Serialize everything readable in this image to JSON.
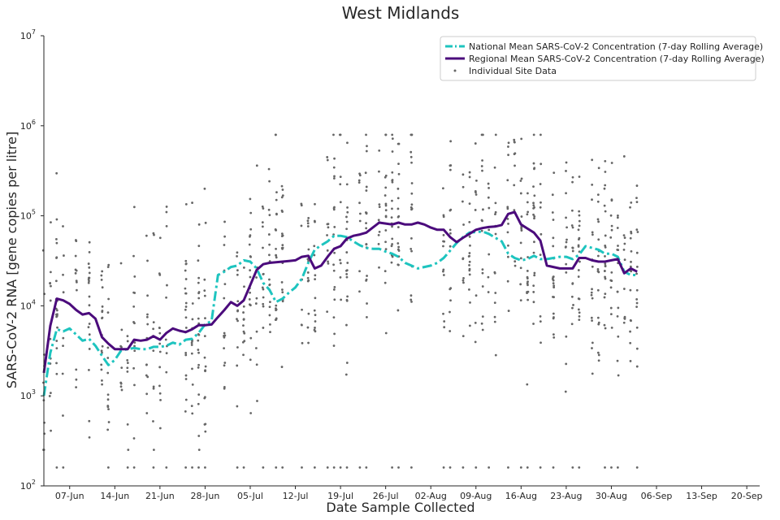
{
  "chart_data": {
    "type": "line",
    "title": "West Midlands",
    "xlabel": "Date Sample Collected",
    "ylabel": "SARS-CoV-2 RNA [gene copies per litre]",
    "yscale": "log",
    "ylim_exp": [
      2,
      7
    ],
    "y_ticks": [
      {
        "base": "10",
        "exp": "2"
      },
      {
        "base": "10",
        "exp": "3"
      },
      {
        "base": "10",
        "exp": "4"
      },
      {
        "base": "10",
        "exp": "5"
      },
      {
        "base": "10",
        "exp": "6"
      },
      {
        "base": "10",
        "exp": "7"
      }
    ],
    "xlim_days": [
      0,
      111
    ],
    "x_ticks": [
      {
        "label": "07-Jun",
        "day": 4
      },
      {
        "label": "14-Jun",
        "day": 11
      },
      {
        "label": "21-Jun",
        "day": 18
      },
      {
        "label": "28-Jun",
        "day": 25
      },
      {
        "label": "05-Jul",
        "day": 32
      },
      {
        "label": "12-Jul",
        "day": 39
      },
      {
        "label": "19-Jul",
        "day": 46
      },
      {
        "label": "26-Jul",
        "day": 53
      },
      {
        "label": "02-Aug",
        "day": 60
      },
      {
        "label": "09-Aug",
        "day": 67
      },
      {
        "label": "16-Aug",
        "day": 74
      },
      {
        "label": "23-Aug",
        "day": 81
      },
      {
        "label": "30-Aug",
        "day": 88
      },
      {
        "label": "06-Sep",
        "day": 95
      },
      {
        "label": "13-Sep",
        "day": 102
      },
      {
        "label": "20-Sep",
        "day": 109
      }
    ],
    "legend": {
      "position": "top-right",
      "entries": [
        {
          "label": "National Mean SARS-CoV-2 Concentration (7-day Rolling Average)",
          "color": "#1ec4bf",
          "style": "dashdot"
        },
        {
          "label": "Regional Mean SARS-CoV-2 Concentration (7-day Rolling Average)",
          "color": "#4b0b7c",
          "style": "solid"
        },
        {
          "label": "Individual Site Data",
          "color": "#666666",
          "style": "point"
        }
      ]
    },
    "series": [
      {
        "name": "National Mean SARS-CoV-2 Concentration (7-day Rolling Average)",
        "color": "#1ec4bf",
        "points": [
          [
            0,
            1000
          ],
          [
            1,
            3000
          ],
          [
            2,
            5500
          ],
          [
            3,
            5200
          ],
          [
            4,
            5600
          ],
          [
            5,
            4800
          ],
          [
            6,
            4100
          ],
          [
            7,
            4300
          ],
          [
            8,
            3600
          ],
          [
            9,
            2800
          ],
          [
            10,
            2200
          ],
          [
            11,
            2500
          ],
          [
            12,
            3200
          ],
          [
            13,
            3300
          ],
          [
            14,
            3400
          ],
          [
            15,
            3300
          ],
          [
            16,
            3300
          ],
          [
            17,
            3500
          ],
          [
            18,
            3500
          ],
          [
            19,
            3600
          ],
          [
            20,
            3900
          ],
          [
            21,
            3700
          ],
          [
            22,
            4200
          ],
          [
            23,
            4300
          ],
          [
            24,
            5000
          ],
          [
            25,
            6200
          ],
          [
            26,
            6800
          ],
          [
            27,
            22000
          ],
          [
            28,
            24000
          ],
          [
            29,
            27000
          ],
          [
            30,
            28000
          ],
          [
            31,
            32000
          ],
          [
            32,
            31000
          ],
          [
            33,
            26000
          ],
          [
            34,
            18000
          ],
          [
            35,
            15000
          ],
          [
            36,
            11000
          ],
          [
            37,
            12000
          ],
          [
            38,
            14000
          ],
          [
            39,
            16000
          ],
          [
            40,
            20000
          ],
          [
            41,
            30000
          ],
          [
            42,
            42000
          ],
          [
            43,
            47000
          ],
          [
            44,
            52000
          ],
          [
            45,
            60000
          ],
          [
            46,
            60000
          ],
          [
            47,
            58000
          ],
          [
            48,
            52000
          ],
          [
            49,
            47000
          ],
          [
            50,
            44000
          ],
          [
            51,
            43000
          ],
          [
            52,
            43000
          ],
          [
            53,
            40000
          ],
          [
            54,
            38000
          ],
          [
            55,
            35000
          ],
          [
            56,
            30000
          ],
          [
            57,
            28000
          ],
          [
            58,
            26000
          ],
          [
            59,
            27000
          ],
          [
            60,
            28000
          ],
          [
            61,
            30000
          ],
          [
            62,
            34000
          ],
          [
            63,
            41000
          ],
          [
            64,
            50000
          ],
          [
            65,
            58000
          ],
          [
            66,
            65000
          ],
          [
            67,
            66000
          ],
          [
            68,
            67000
          ],
          [
            69,
            63000
          ],
          [
            70,
            57000
          ],
          [
            71,
            52000
          ],
          [
            72,
            38000
          ],
          [
            73,
            34000
          ],
          [
            74,
            32000
          ],
          [
            75,
            33000
          ],
          [
            76,
            36000
          ],
          [
            77,
            33000
          ],
          [
            78,
            33000
          ],
          [
            79,
            34000
          ],
          [
            80,
            35000
          ],
          [
            81,
            35000
          ],
          [
            82,
            33000
          ],
          [
            83,
            37000
          ],
          [
            84,
            46000
          ],
          [
            85,
            44000
          ],
          [
            86,
            42000
          ],
          [
            87,
            38000
          ],
          [
            88,
            38000
          ],
          [
            89,
            35000
          ],
          [
            90,
            24000
          ],
          [
            91,
            22000
          ],
          [
            92,
            22000
          ]
        ]
      },
      {
        "name": "Regional Mean SARS-CoV-2 Concentration (7-day Rolling Average)",
        "color": "#4b0b7c",
        "points": [
          [
            0,
            1800
          ],
          [
            1,
            6000
          ],
          [
            2,
            12000
          ],
          [
            3,
            11500
          ],
          [
            4,
            10500
          ],
          [
            5,
            9000
          ],
          [
            6,
            8000
          ],
          [
            7,
            8300
          ],
          [
            8,
            7200
          ],
          [
            9,
            4500
          ],
          [
            10,
            3800
          ],
          [
            11,
            3300
          ],
          [
            12,
            3300
          ],
          [
            13,
            3300
          ],
          [
            14,
            4200
          ],
          [
            15,
            4100
          ],
          [
            16,
            4200
          ],
          [
            17,
            4600
          ],
          [
            18,
            4200
          ],
          [
            19,
            5000
          ],
          [
            20,
            5600
          ],
          [
            21,
            5300
          ],
          [
            22,
            5100
          ],
          [
            23,
            5500
          ],
          [
            24,
            6100
          ],
          [
            25,
            6100
          ],
          [
            26,
            6200
          ],
          [
            27,
            7500
          ],
          [
            28,
            9000
          ],
          [
            29,
            11000
          ],
          [
            30,
            10000
          ],
          [
            31,
            11500
          ],
          [
            32,
            17000
          ],
          [
            33,
            25000
          ],
          [
            34,
            29000
          ],
          [
            35,
            30000
          ],
          [
            36,
            30500
          ],
          [
            37,
            31000
          ],
          [
            38,
            31500
          ],
          [
            39,
            32000
          ],
          [
            40,
            35000
          ],
          [
            41,
            36000
          ],
          [
            42,
            26000
          ],
          [
            43,
            28000
          ],
          [
            44,
            35000
          ],
          [
            45,
            43000
          ],
          [
            46,
            46000
          ],
          [
            47,
            56000
          ],
          [
            48,
            60000
          ],
          [
            49,
            62000
          ],
          [
            50,
            65000
          ],
          [
            51,
            74000
          ],
          [
            52,
            84000
          ],
          [
            53,
            82000
          ],
          [
            54,
            80000
          ],
          [
            55,
            84000
          ],
          [
            56,
            80000
          ],
          [
            57,
            80000
          ],
          [
            58,
            84000
          ],
          [
            59,
            80000
          ],
          [
            60,
            74000
          ],
          [
            61,
            70000
          ],
          [
            62,
            70000
          ],
          [
            63,
            58000
          ],
          [
            64,
            51000
          ],
          [
            65,
            57000
          ],
          [
            66,
            63000
          ],
          [
            67,
            70000
          ],
          [
            68,
            73000
          ],
          [
            69,
            75000
          ],
          [
            70,
            76000
          ],
          [
            71,
            79000
          ],
          [
            72,
            105000
          ],
          [
            73,
            110000
          ],
          [
            74,
            80000
          ],
          [
            75,
            72000
          ],
          [
            76,
            65000
          ],
          [
            77,
            53000
          ],
          [
            78,
            28000
          ],
          [
            79,
            27000
          ],
          [
            80,
            26000
          ],
          [
            81,
            26000
          ],
          [
            82,
            26000
          ],
          [
            83,
            34000
          ],
          [
            84,
            34000
          ],
          [
            85,
            32000
          ],
          [
            86,
            31000
          ],
          [
            87,
            31000
          ],
          [
            88,
            32000
          ],
          [
            89,
            33000
          ],
          [
            90,
            23000
          ],
          [
            91,
            26000
          ],
          [
            92,
            24000
          ]
        ]
      }
    ],
    "scatter_note": "Individual Site Data"
  }
}
